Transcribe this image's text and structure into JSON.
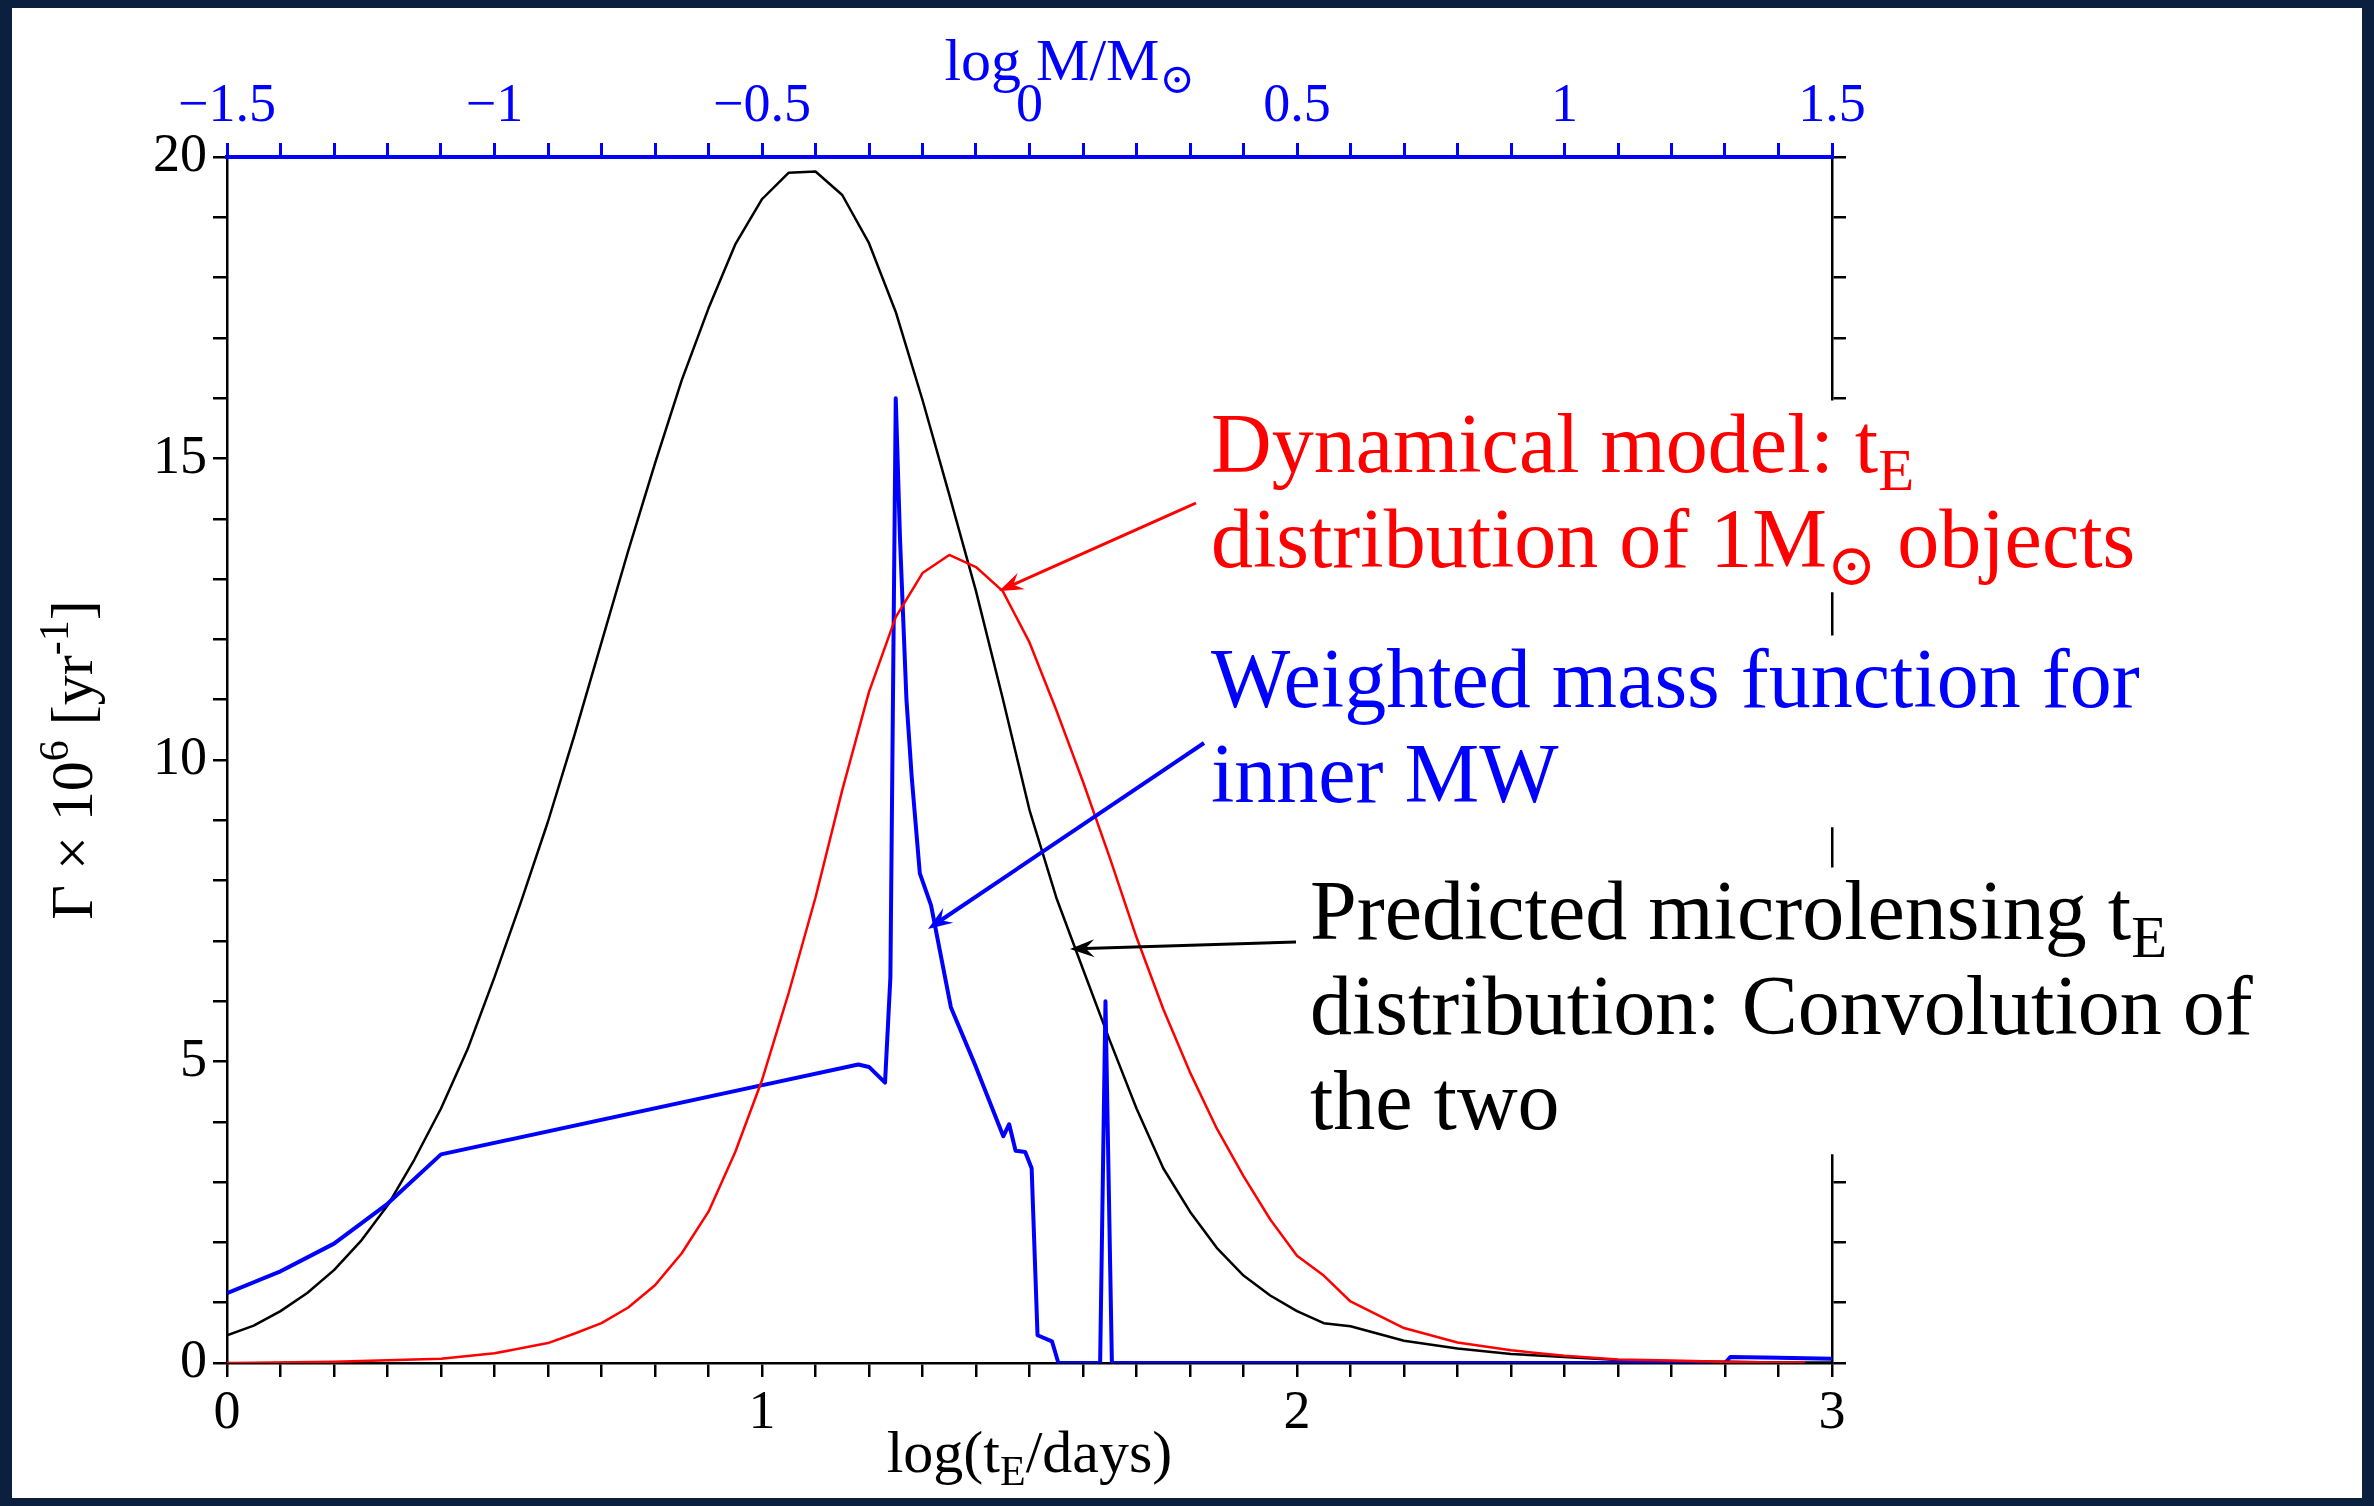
{
  "chart_data": {
    "type": "line",
    "xlabel": "log(t$_{E}$/days)",
    "ylabel": "Γ × 10$^{6}$ [yr$^{-1}$]",
    "x2label": "log M/M$_{⊙}$",
    "xlim": [
      0,
      3
    ],
    "xticks": [
      0,
      {
        "value": 0.1,
        "label": null
      },
      {
        "value": 0.2,
        "label": null
      },
      {
        "value": 0.3,
        "label": null
      },
      {
        "value": 0.4,
        "label": null
      },
      {
        "value": 0.5,
        "label": null
      },
      {
        "value": 0.6,
        "label": null
      },
      {
        "value": 0.7,
        "label": null
      },
      {
        "value": 0.8,
        "label": null
      },
      {
        "value": 0.9,
        "label": null
      },
      1,
      {
        "value": 1.1,
        "label": null
      },
      {
        "value": 1.2,
        "label": null
      },
      {
        "value": 1.3,
        "label": null
      },
      {
        "value": 1.4,
        "label": null
      },
      {
        "value": 1.5,
        "label": null
      },
      {
        "value": 1.6,
        "label": null
      },
      {
        "value": 1.7,
        "label": null
      },
      {
        "value": 1.8,
        "label": null
      },
      {
        "value": 1.9,
        "label": null
      },
      2,
      {
        "value": 2.1,
        "label": null
      },
      {
        "value": 2.2,
        "label": null
      },
      {
        "value": 2.3,
        "label": null
      },
      {
        "value": 2.4,
        "label": null
      },
      {
        "value": 2.5,
        "label": null
      },
      {
        "value": 2.6,
        "label": null
      },
      {
        "value": 2.7,
        "label": null
      },
      {
        "value": 2.8,
        "label": null
      },
      {
        "value": 2.9,
        "label": null
      },
      3
    ],
    "x2lim": [
      -1.5,
      1.5
    ],
    "x2ticks": [
      {
        "value": -1.5,
        "label": "−1.5"
      },
      {
        "value": -1.4,
        "label": null
      },
      {
        "value": -1.3,
        "label": null
      },
      {
        "value": -1.2,
        "label": null
      },
      {
        "value": -1.1,
        "label": null
      },
      {
        "value": -1,
        "label": "−1"
      },
      {
        "value": -0.9,
        "label": null
      },
      {
        "value": -0.8,
        "label": null
      },
      {
        "value": -0.7,
        "label": null
      },
      {
        "value": -0.6,
        "label": null
      },
      {
        "value": -0.5,
        "label": "−0.5"
      },
      {
        "value": -0.4,
        "label": null
      },
      {
        "value": -0.3,
        "label": null
      },
      {
        "value": -0.2,
        "label": null
      },
      {
        "value": -0.1,
        "label": null
      },
      0,
      {
        "value": 0.1,
        "label": null
      },
      {
        "value": 0.2,
        "label": null
      },
      {
        "value": 0.3,
        "label": null
      },
      {
        "value": 0.4,
        "label": null
      },
      0.5,
      {
        "value": 0.6,
        "label": null
      },
      {
        "value": 0.7,
        "label": null
      },
      {
        "value": 0.8,
        "label": null
      },
      {
        "value": 0.9,
        "label": null
      },
      1,
      {
        "value": 1.1,
        "label": null
      },
      {
        "value": 1.2,
        "label": null
      },
      {
        "value": 1.3,
        "label": null
      },
      {
        "value": 1.4,
        "label": null
      },
      1.5
    ],
    "ylim": [
      0,
      20
    ],
    "yticks": [
      0,
      {
        "value": 1,
        "label": null
      },
      {
        "value": 2,
        "label": null
      },
      {
        "value": 3,
        "label": null
      },
      {
        "value": 4,
        "label": null
      },
      5,
      {
        "value": 6,
        "label": null
      },
      {
        "value": 7,
        "label": null
      },
      {
        "value": 8,
        "label": null
      },
      {
        "value": 9,
        "label": null
      },
      10,
      {
        "value": 11,
        "label": null
      },
      {
        "value": 12,
        "label": null
      },
      {
        "value": 13,
        "label": null
      },
      {
        "value": 14,
        "label": null
      },
      15,
      {
        "value": 16,
        "label": null
      },
      {
        "value": 17,
        "label": null
      },
      {
        "value": 18,
        "label": null
      },
      {
        "value": 19,
        "label": null
      },
      20
    ],
    "series": [
      {
        "color": "#ff0000",
        "x": [
          0,
          0.2,
          0.4,
          0.5,
          0.6,
          0.65,
          0.7,
          0.75,
          0.8,
          0.85,
          0.9,
          0.95,
          1.0,
          1.05,
          1.1,
          1.15,
          1.2,
          1.25,
          1.3,
          1.35,
          1.4,
          1.45,
          1.5,
          1.55,
          1.6,
          1.65,
          1.7,
          1.75,
          1.8,
          1.85,
          1.9,
          1.95,
          2.0,
          2.05,
          2.1,
          2.2,
          2.3,
          2.4,
          2.5,
          2.6,
          2.7,
          2.8,
          2.9,
          2.95
        ],
        "values": [
          0,
          0.02,
          0.07,
          0.16,
          0.33,
          0.49,
          0.66,
          0.92,
          1.29,
          1.82,
          2.51,
          3.5,
          4.69,
          6.14,
          7.72,
          9.5,
          11.13,
          12.37,
          13.1,
          13.4,
          13.2,
          12.8,
          11.95,
          10.83,
          9.64,
          8.38,
          7.06,
          5.87,
          4.82,
          3.89,
          3.1,
          2.38,
          1.78,
          1.45,
          1.02,
          0.58,
          0.34,
          0.21,
          0.12,
          0.06,
          0.04,
          0.02,
          0.01,
          0.01
        ]
      },
      {
        "color": "#0000ff",
        "x": [
          0,
          0.1,
          0.2,
          0.3,
          0.4,
          1.18,
          1.2,
          1.23,
          1.24,
          1.25,
          1.258,
          1.27,
          1.28,
          1.295,
          1.316,
          1.353,
          1.398,
          1.451,
          1.462,
          1.474,
          1.492,
          1.504,
          1.515,
          1.542,
          1.554,
          1.632,
          1.642,
          1.654,
          2.8,
          2.81,
          3.0
        ],
        "values": [
          1.16,
          1.52,
          1.98,
          2.64,
          3.46,
          4.95,
          4.91,
          4.65,
          6.4,
          16,
          13.66,
          11,
          9.7,
          8.12,
          7.59,
          5.9,
          4.95,
          3.76,
          3.96,
          3.52,
          3.5,
          3.23,
          0.46,
          0.36,
          0,
          0,
          6.0,
          0,
          0,
          0.1,
          0.07
        ]
      },
      {
        "color": "#000000",
        "x": [
          0,
          0.05,
          0.1,
          0.15,
          0.2,
          0.25,
          0.3,
          0.35,
          0.4,
          0.45,
          0.5,
          0.55,
          0.6,
          0.65,
          0.7,
          0.75,
          0.8,
          0.85,
          0.9,
          0.95,
          1.0,
          1.05,
          1.1,
          1.15,
          1.2,
          1.25,
          1.3,
          1.35,
          1.4,
          1.45,
          1.5,
          1.55,
          1.6,
          1.65,
          1.7,
          1.75,
          1.8,
          1.85,
          1.9,
          1.95,
          2.0,
          2.05,
          2.1,
          2.2,
          2.3,
          2.4,
          2.5,
          2.6,
          2.7,
          2.8,
          2.9,
          3.0
        ],
        "values": [
          0.46,
          0.62,
          0.86,
          1.16,
          1.54,
          2.02,
          2.61,
          3.37,
          4.22,
          5.21,
          6.4,
          7.66,
          8.98,
          10.43,
          11.95,
          13.47,
          14.92,
          16.3,
          17.49,
          18.55,
          19.3,
          19.74,
          19.76,
          19.37,
          18.57,
          17.43,
          15.97,
          14.4,
          12.8,
          11.02,
          9.17,
          7.72,
          6.53,
          5.35,
          4.22,
          3.23,
          2.51,
          1.91,
          1.45,
          1.12,
          0.86,
          0.66,
          0.61,
          0.37,
          0.24,
          0.15,
          0.1,
          0.05,
          0.03,
          0.02,
          0.01,
          0.01
        ]
      }
    ],
    "annotations": [
      "Dynamical model: t$_{E}$\ndistribution of 1M$_{⊙}$ objects",
      "Weighted mass function for\ninner MW",
      "Predicted microlensing t$_{E}$\ndistribution: Convolution of\nthe two"
    ],
    "grid": false,
    "legend": false,
    "marker": "none",
    "line_style": "solid"
  }
}
